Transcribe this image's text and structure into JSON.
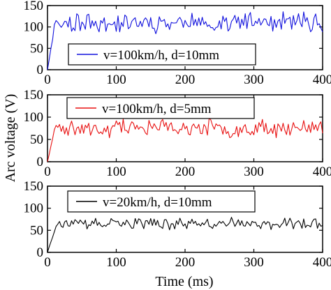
{
  "figure": {
    "ylabel": "Arc voltage (V)",
    "xlabel": "Time (ms)"
  },
  "chart_data": [
    {
      "type": "line",
      "legend": "v=100km/h, d=10mm",
      "color": "#1010dd",
      "xlim": [
        0,
        400
      ],
      "ylim": [
        0,
        150
      ],
      "xticks": [
        0,
        100,
        200,
        300,
        400
      ],
      "yticks": [
        0,
        50,
        100,
        150
      ],
      "plateau": 110,
      "amplitude": 18,
      "rise_end_ms": 10,
      "series": [
        {
          "x_start": 0,
          "x_end": 400,
          "step_ms": 2.5,
          "seed": 11
        }
      ]
    },
    {
      "type": "line",
      "legend": "v=100km/h, d=5mm",
      "color": "#e81010",
      "xlim": [
        0,
        400
      ],
      "ylim": [
        0,
        150
      ],
      "xticks": [
        0,
        100,
        200,
        300,
        400
      ],
      "yticks": [
        0,
        50,
        100,
        150
      ],
      "plateau": 75,
      "amplitude": 16,
      "rise_end_ms": 10,
      "series": [
        {
          "x_start": 0,
          "x_end": 400,
          "step_ms": 2.5,
          "seed": 23
        }
      ]
    },
    {
      "type": "line",
      "legend": "v=20km/h, d=10mm",
      "color": "#000000",
      "xlim": [
        0,
        400
      ],
      "ylim": [
        0,
        150
      ],
      "xticks": [
        0,
        100,
        200,
        300,
        400
      ],
      "yticks": [
        0,
        50,
        100,
        150
      ],
      "plateau": 65,
      "amplitude": 10,
      "rise_end_ms": 12,
      "series": [
        {
          "x_start": 0,
          "x_end": 400,
          "step_ms": 2.5,
          "seed": 37
        }
      ]
    }
  ]
}
